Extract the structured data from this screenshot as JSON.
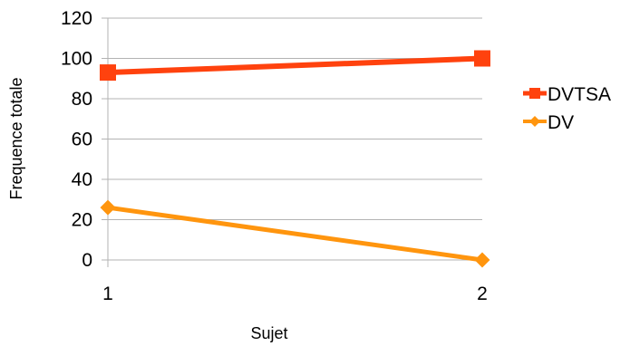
{
  "chart_data": {
    "type": "line",
    "title": "",
    "xlabel": "Sujet",
    "ylabel": "Frequence totale",
    "categories": [
      "1",
      "2"
    ],
    "ylim": [
      0,
      120
    ],
    "yticks": [
      0,
      20,
      40,
      60,
      80,
      100,
      120
    ],
    "grid": {
      "horizontal": true,
      "vertical": false
    },
    "legend_position": "right",
    "series": [
      {
        "name": "DVTSA",
        "values": [
          93,
          100
        ],
        "color": "#ff420e",
        "marker": "square"
      },
      {
        "name": "DV",
        "values": [
          26,
          0
        ],
        "color": "#ff950e",
        "marker": "diamond"
      }
    ]
  }
}
